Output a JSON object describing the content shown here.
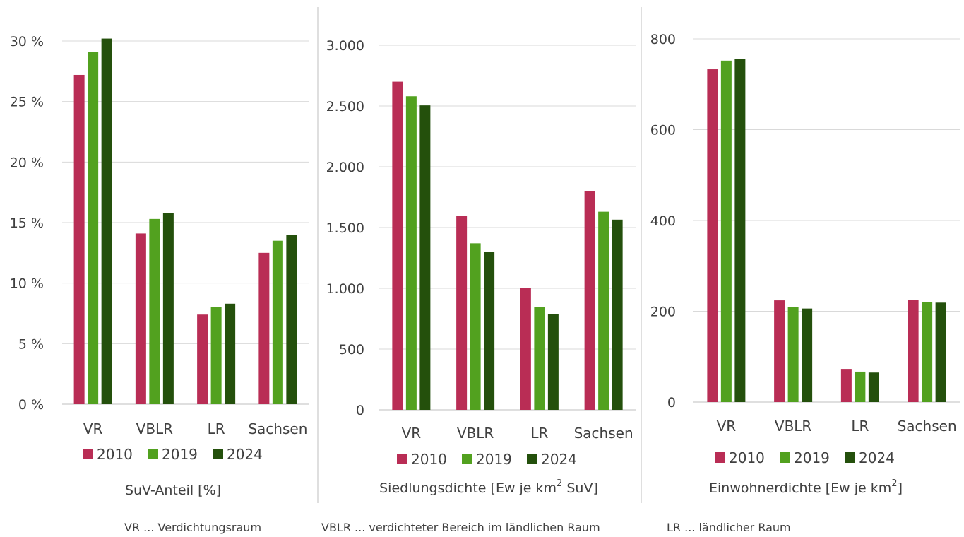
{
  "colors": {
    "2010": "#b92d55",
    "2019": "#52a11f",
    "2024": "#24500c",
    "grid": "#d9d9d9",
    "text": "#404040"
  },
  "chart_data": [
    {
      "type": "bar",
      "title": "SuV-Anteil [%]",
      "categories": [
        "VR",
        "VBLR",
        "LR",
        "Sachsen"
      ],
      "series": [
        {
          "name": "2010",
          "values": [
            27.2,
            14.1,
            7.4,
            12.5
          ]
        },
        {
          "name": "2019",
          "values": [
            29.1,
            15.3,
            8.0,
            13.5
          ]
        },
        {
          "name": "2024",
          "values": [
            30.2,
            15.8,
            8.3,
            14.0
          ]
        }
      ],
      "ylim": [
        0,
        30
      ],
      "yticks": [
        0,
        5,
        10,
        15,
        20,
        25,
        30
      ],
      "ytick_labels": [
        "0 %",
        "5 %",
        "10 %",
        "15 %",
        "20 %",
        "25 %",
        "30 %"
      ],
      "legend": "bottom",
      "grid": true
    },
    {
      "type": "bar",
      "title_main": "Siedlungsdichte [Ew je km",
      "title_sup": "2",
      "title_end": " SuV]",
      "categories": [
        "VR",
        "VBLR",
        "LR",
        "Sachsen"
      ],
      "series": [
        {
          "name": "2010",
          "values": [
            2700,
            1595,
            1005,
            1800
          ]
        },
        {
          "name": "2019",
          "values": [
            2580,
            1370,
            845,
            1630
          ]
        },
        {
          "name": "2024",
          "values": [
            2505,
            1300,
            790,
            1565
          ]
        }
      ],
      "ylim": [
        0,
        3000
      ],
      "yticks": [
        0,
        500,
        1000,
        1500,
        2000,
        2500,
        3000
      ],
      "ytick_labels": [
        "0",
        "500",
        "1.000",
        "1.500",
        "2.000",
        "2.500",
        "3.000"
      ],
      "legend": "bottom",
      "grid": true
    },
    {
      "type": "bar",
      "title_main": "Einwohnerdichte [Ew je km",
      "title_sup": "2",
      "title_end": "]",
      "categories": [
        "VR",
        "VBLR",
        "LR",
        "Sachsen"
      ],
      "series": [
        {
          "name": "2010",
          "values": [
            733,
            224,
            73,
            225
          ]
        },
        {
          "name": "2019",
          "values": [
            752,
            209,
            67,
            221
          ]
        },
        {
          "name": "2024",
          "values": [
            756,
            206,
            65,
            219
          ]
        }
      ],
      "ylim": [
        0,
        800
      ],
      "yticks": [
        0,
        200,
        400,
        600,
        800
      ],
      "ytick_labels": [
        "0",
        "200",
        "400",
        "600",
        "800"
      ],
      "legend": "bottom",
      "grid": true
    }
  ],
  "footnotes": [
    "VR ... Verdichtungsraum",
    "VBLR ... verdichteter Bereich im ländlichen Raum",
    "LR ... ländlicher Raum"
  ]
}
